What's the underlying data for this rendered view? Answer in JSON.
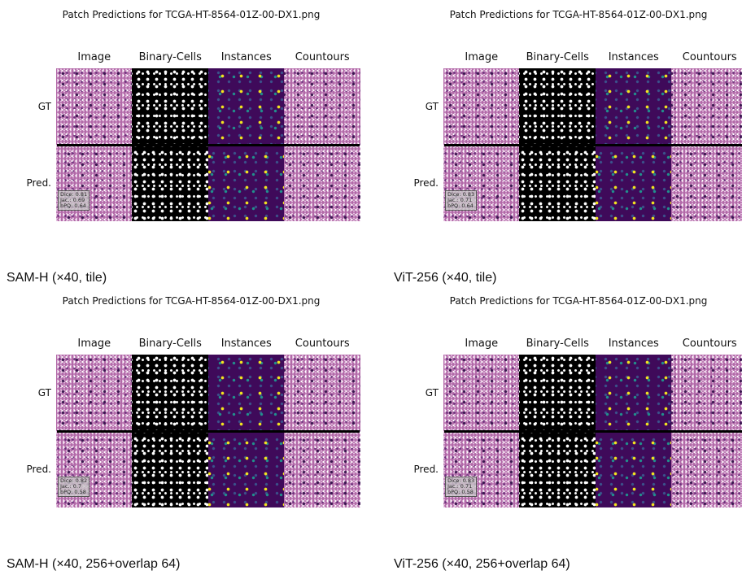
{
  "panels": [
    {
      "title": "Patch Predictions for TCGA-HT-8564-01Z-00-DX1.png",
      "columns": [
        "Image",
        "Binary-Cells",
        "Instances",
        "Countours"
      ],
      "rows": [
        "GT",
        "Pred."
      ],
      "metrics": [
        "Dice: 0.81",
        "Jac.: 0.69",
        "bPQ: 0.64"
      ],
      "caption": "SAM-H (×40, tile)"
    },
    {
      "title": "Patch Predictions for TCGA-HT-8564-01Z-00-DX1.png",
      "columns": [
        "Image",
        "Binary-Cells",
        "Instances",
        "Countours"
      ],
      "rows": [
        "GT",
        "Pred."
      ],
      "metrics": [
        "Dice: 0.83",
        "Jac.: 0.71",
        "bPQ: 0.64"
      ],
      "caption": "ViT-256 (×40, tile)"
    },
    {
      "title": "Patch Predictions for TCGA-HT-8564-01Z-00-DX1.png",
      "columns": [
        "Image",
        "Binary-Cells",
        "Instances",
        "Countours"
      ],
      "rows": [
        "GT",
        "Pred."
      ],
      "metrics": [
        "Dice: 0.82",
        "Jac.: 0.7",
        "bPQ: 0.58"
      ],
      "caption": "SAM-H (×40, 256+overlap 64)"
    },
    {
      "title": "Patch Predictions for TCGA-HT-8564-01Z-00-DX1.png",
      "columns": [
        "Image",
        "Binary-Cells",
        "Instances",
        "Countours"
      ],
      "rows": [
        "GT",
        "Pred."
      ],
      "metrics": [
        "Dice: 0.83",
        "Jac.: 0.71",
        "bPQ: 0.58"
      ],
      "caption": "ViT-256 (×40, 256+overlap 64)"
    }
  ]
}
